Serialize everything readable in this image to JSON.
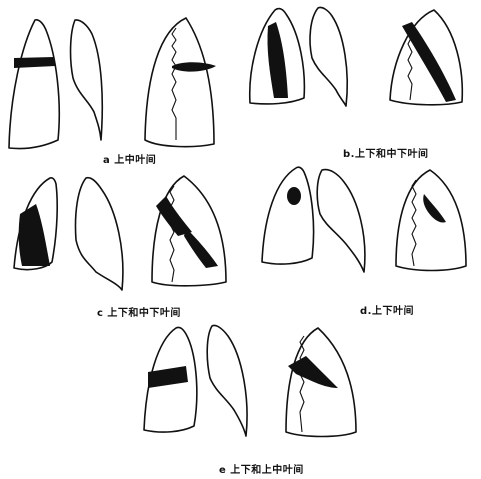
{
  "figures": [
    {
      "id": "a",
      "caption": "a 上中叶间"
    },
    {
      "id": "b",
      "caption": "b.上下和中下叶间"
    },
    {
      "id": "c",
      "caption": "c 上下和中下叶间"
    },
    {
      "id": "d",
      "caption": "d.上下叶间"
    },
    {
      "id": "e",
      "caption": "e 上下和上中叶间"
    }
  ],
  "colors": {
    "ink": "#111111",
    "paper": "#ffffff"
  }
}
